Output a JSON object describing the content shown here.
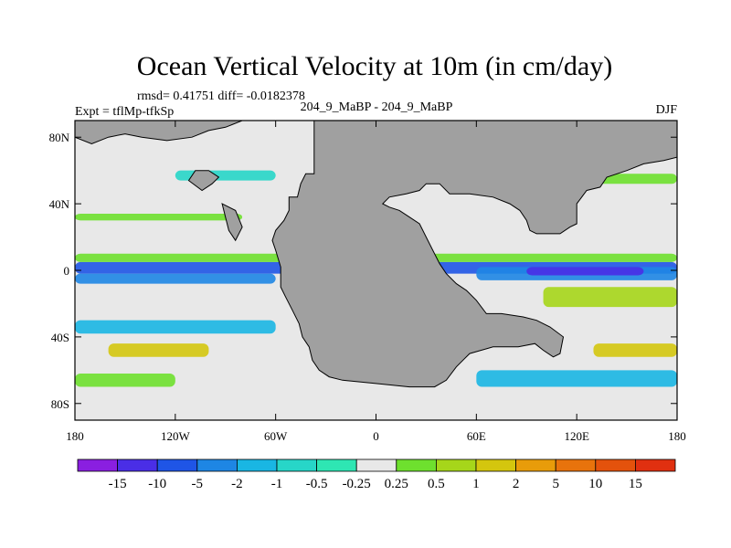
{
  "chart_data": {
    "type": "heatmap",
    "title": "Ocean Vertical Velocity at 10m (in cm/day)",
    "stats_text": "rmsd= 0.41751  diff= -0.0182378",
    "experiment_label": "Expt = tflMp-tfkSp",
    "case_label": "204_9_MaBP - 204_9_MaBP",
    "season": "DJF",
    "x_range": [
      -180,
      180
    ],
    "y_range": [
      -90,
      90
    ],
    "x_ticks": [
      {
        "value": -180,
        "label": "180"
      },
      {
        "value": -120,
        "label": "120W"
      },
      {
        "value": -60,
        "label": "60W"
      },
      {
        "value": 0,
        "label": "0"
      },
      {
        "value": 60,
        "label": "60E"
      },
      {
        "value": 120,
        "label": "120E"
      },
      {
        "value": 180,
        "label": "180"
      }
    ],
    "y_ticks": [
      {
        "value": 80,
        "label": "80N"
      },
      {
        "value": 40,
        "label": "40N"
      },
      {
        "value": 0,
        "label": "0"
      },
      {
        "value": -40,
        "label": "40S"
      },
      {
        "value": -80,
        "label": "80S"
      }
    ],
    "colorbar": {
      "levels": [
        -15,
        -10,
        -5,
        -2,
        -1,
        -0.5,
        -0.25,
        0.25,
        0.5,
        1,
        2,
        5,
        10,
        15
      ],
      "labels": [
        "-15",
        "-10",
        "-5",
        "-2",
        "-1",
        "-0.5",
        "-0.25",
        "0.25",
        "0.5",
        "1",
        "2",
        "5",
        "10",
        "15"
      ],
      "colors": [
        "#8a1fe0",
        "#4a2ee6",
        "#1f55e6",
        "#1e86e4",
        "#19b6e3",
        "#27d6c8",
        "#2ee6b3",
        "#e8e8e8",
        "#6ee02e",
        "#a6d61a",
        "#d4c60e",
        "#e89c0a",
        "#e8730c",
        "#e4520c",
        "#e03010"
      ]
    },
    "land_color": "#a0a0a0",
    "land_outline": [
      [
        -37,
        90
      ],
      [
        -37,
        58
      ],
      [
        -42,
        58
      ],
      [
        -45,
        52
      ],
      [
        -47,
        44
      ],
      [
        -52,
        44
      ],
      [
        -52,
        36
      ],
      [
        -55,
        30
      ],
      [
        -60,
        24
      ],
      [
        -62,
        18
      ],
      [
        -60,
        12
      ],
      [
        -57,
        2
      ],
      [
        -57,
        -10
      ],
      [
        -54,
        -16
      ],
      [
        -50,
        -24
      ],
      [
        -46,
        -32
      ],
      [
        -44,
        -40
      ],
      [
        -40,
        -46
      ],
      [
        -38,
        -54
      ],
      [
        -34,
        -60
      ],
      [
        -28,
        -64
      ],
      [
        -20,
        -66
      ],
      [
        0,
        -68
      ],
      [
        20,
        -70
      ],
      [
        35,
        -70
      ],
      [
        42,
        -66
      ],
      [
        48,
        -58
      ],
      [
        56,
        -50
      ],
      [
        70,
        -46
      ],
      [
        85,
        -46
      ],
      [
        95,
        -44
      ],
      [
        100,
        -48
      ],
      [
        106,
        -52
      ],
      [
        110,
        -50
      ],
      [
        112,
        -40
      ],
      [
        104,
        -34
      ],
      [
        96,
        -30
      ],
      [
        88,
        -28
      ],
      [
        75,
        -26
      ],
      [
        66,
        -26
      ],
      [
        60,
        -18
      ],
      [
        54,
        -12
      ],
      [
        48,
        -8
      ],
      [
        42,
        -2
      ],
      [
        38,
        4
      ],
      [
        34,
        12
      ],
      [
        30,
        20
      ],
      [
        26,
        28
      ],
      [
        20,
        32
      ],
      [
        14,
        36
      ],
      [
        8,
        38
      ],
      [
        4,
        40
      ],
      [
        8,
        44
      ],
      [
        18,
        46
      ],
      [
        26,
        48
      ],
      [
        30,
        52
      ],
      [
        38,
        52
      ],
      [
        44,
        46
      ],
      [
        56,
        46
      ],
      [
        70,
        44
      ],
      [
        80,
        40
      ],
      [
        86,
        36
      ],
      [
        90,
        30
      ],
      [
        92,
        24
      ],
      [
        96,
        22
      ],
      [
        104,
        22
      ],
      [
        110,
        22
      ],
      [
        116,
        26
      ],
      [
        120,
        28
      ],
      [
        120,
        40
      ],
      [
        126,
        48
      ],
      [
        134,
        50
      ],
      [
        138,
        56
      ],
      [
        150,
        60
      ],
      [
        160,
        64
      ],
      [
        172,
        66
      ],
      [
        180,
        68
      ],
      [
        180,
        90
      ]
    ],
    "land_patches": [
      [
        [
          -180,
          90
        ],
        [
          -180,
          80
        ],
        [
          -170,
          76
        ],
        [
          -160,
          80
        ],
        [
          -150,
          82
        ],
        [
          -140,
          80
        ],
        [
          -125,
          78
        ],
        [
          -110,
          80
        ],
        [
          -100,
          84
        ],
        [
          -90,
          86
        ],
        [
          -80,
          90
        ]
      ],
      [
        [
          -112,
          54
        ],
        [
          -104,
          48
        ],
        [
          -98,
          52
        ],
        [
          -94,
          56
        ],
        [
          -100,
          60
        ],
        [
          -108,
          60
        ]
      ],
      [
        [
          -92,
          40
        ],
        [
          -88,
          24
        ],
        [
          -84,
          18
        ],
        [
          -80,
          26
        ],
        [
          -84,
          36
        ]
      ]
    ],
    "anomaly_bands": [
      {
        "lon": [
          -180,
          180
        ],
        "lat": [
          -2,
          5
        ],
        "level": -5
      },
      {
        "lon": [
          -180,
          180
        ],
        "lat": [
          5,
          10
        ],
        "level": 0.5
      },
      {
        "lon": [
          -180,
          -60
        ],
        "lat": [
          -8,
          -2
        ],
        "level": -2
      },
      {
        "lon": [
          60,
          180
        ],
        "lat": [
          -6,
          2
        ],
        "level": -2
      },
      {
        "lon": [
          90,
          160
        ],
        "lat": [
          -3,
          2
        ],
        "level": -10
      },
      {
        "lon": [
          100,
          180
        ],
        "lat": [
          -22,
          -10
        ],
        "level": 1
      },
      {
        "lon": [
          -180,
          -120
        ],
        "lat": [
          -70,
          -62
        ],
        "level": 0.5
      },
      {
        "lon": [
          -160,
          -100
        ],
        "lat": [
          -52,
          -44
        ],
        "level": 2
      },
      {
        "lon": [
          130,
          180
        ],
        "lat": [
          -52,
          -44
        ],
        "level": 2
      },
      {
        "lon": [
          -180,
          -60
        ],
        "lat": [
          -38,
          -30
        ],
        "level": -1
      },
      {
        "lon": [
          60,
          180
        ],
        "lat": [
          -70,
          -60
        ],
        "level": -1
      },
      {
        "lon": [
          -180,
          -80
        ],
        "lat": [
          30,
          34
        ],
        "level": 0.5
      },
      {
        "lon": [
          -120,
          -60
        ],
        "lat": [
          54,
          60
        ],
        "level": -0.5
      },
      {
        "lon": [
          130,
          180
        ],
        "lat": [
          52,
          58
        ],
        "level": 0.5
      }
    ]
  }
}
